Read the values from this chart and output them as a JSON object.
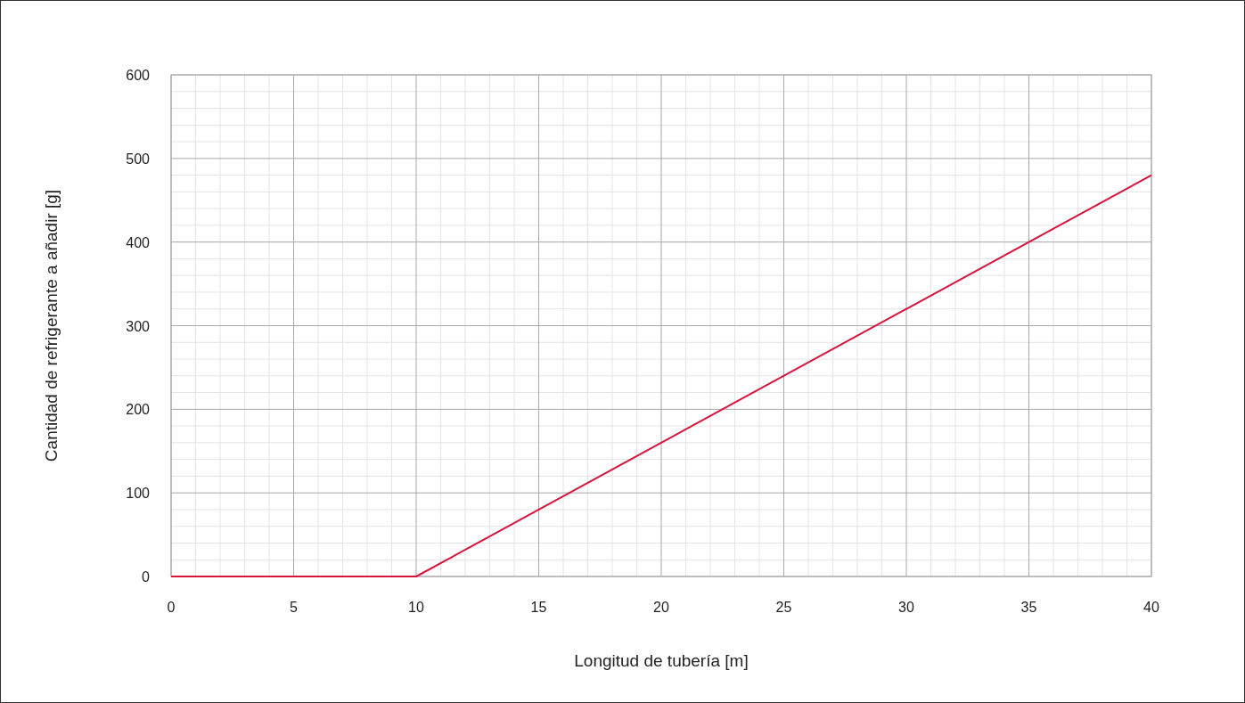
{
  "chart_data": {
    "type": "line",
    "xlabel": "Longitud de tubería [m]",
    "ylabel": "Cantidad de refrigerante a añadir [g]",
    "series": [
      {
        "color": "#d7143c",
        "x": [
          0,
          10,
          40
        ],
        "values": [
          0,
          0,
          480
        ]
      }
    ],
    "xlim": [
      0,
      40
    ],
    "xticks": [
      0,
      5,
      10,
      15,
      20,
      25,
      30,
      35,
      40
    ],
    "ylim": [
      0,
      600
    ],
    "yticks": [
      0,
      100,
      200,
      300,
      400,
      500,
      600
    ],
    "grid": true,
    "marker": "none",
    "line_style": "solid"
  }
}
